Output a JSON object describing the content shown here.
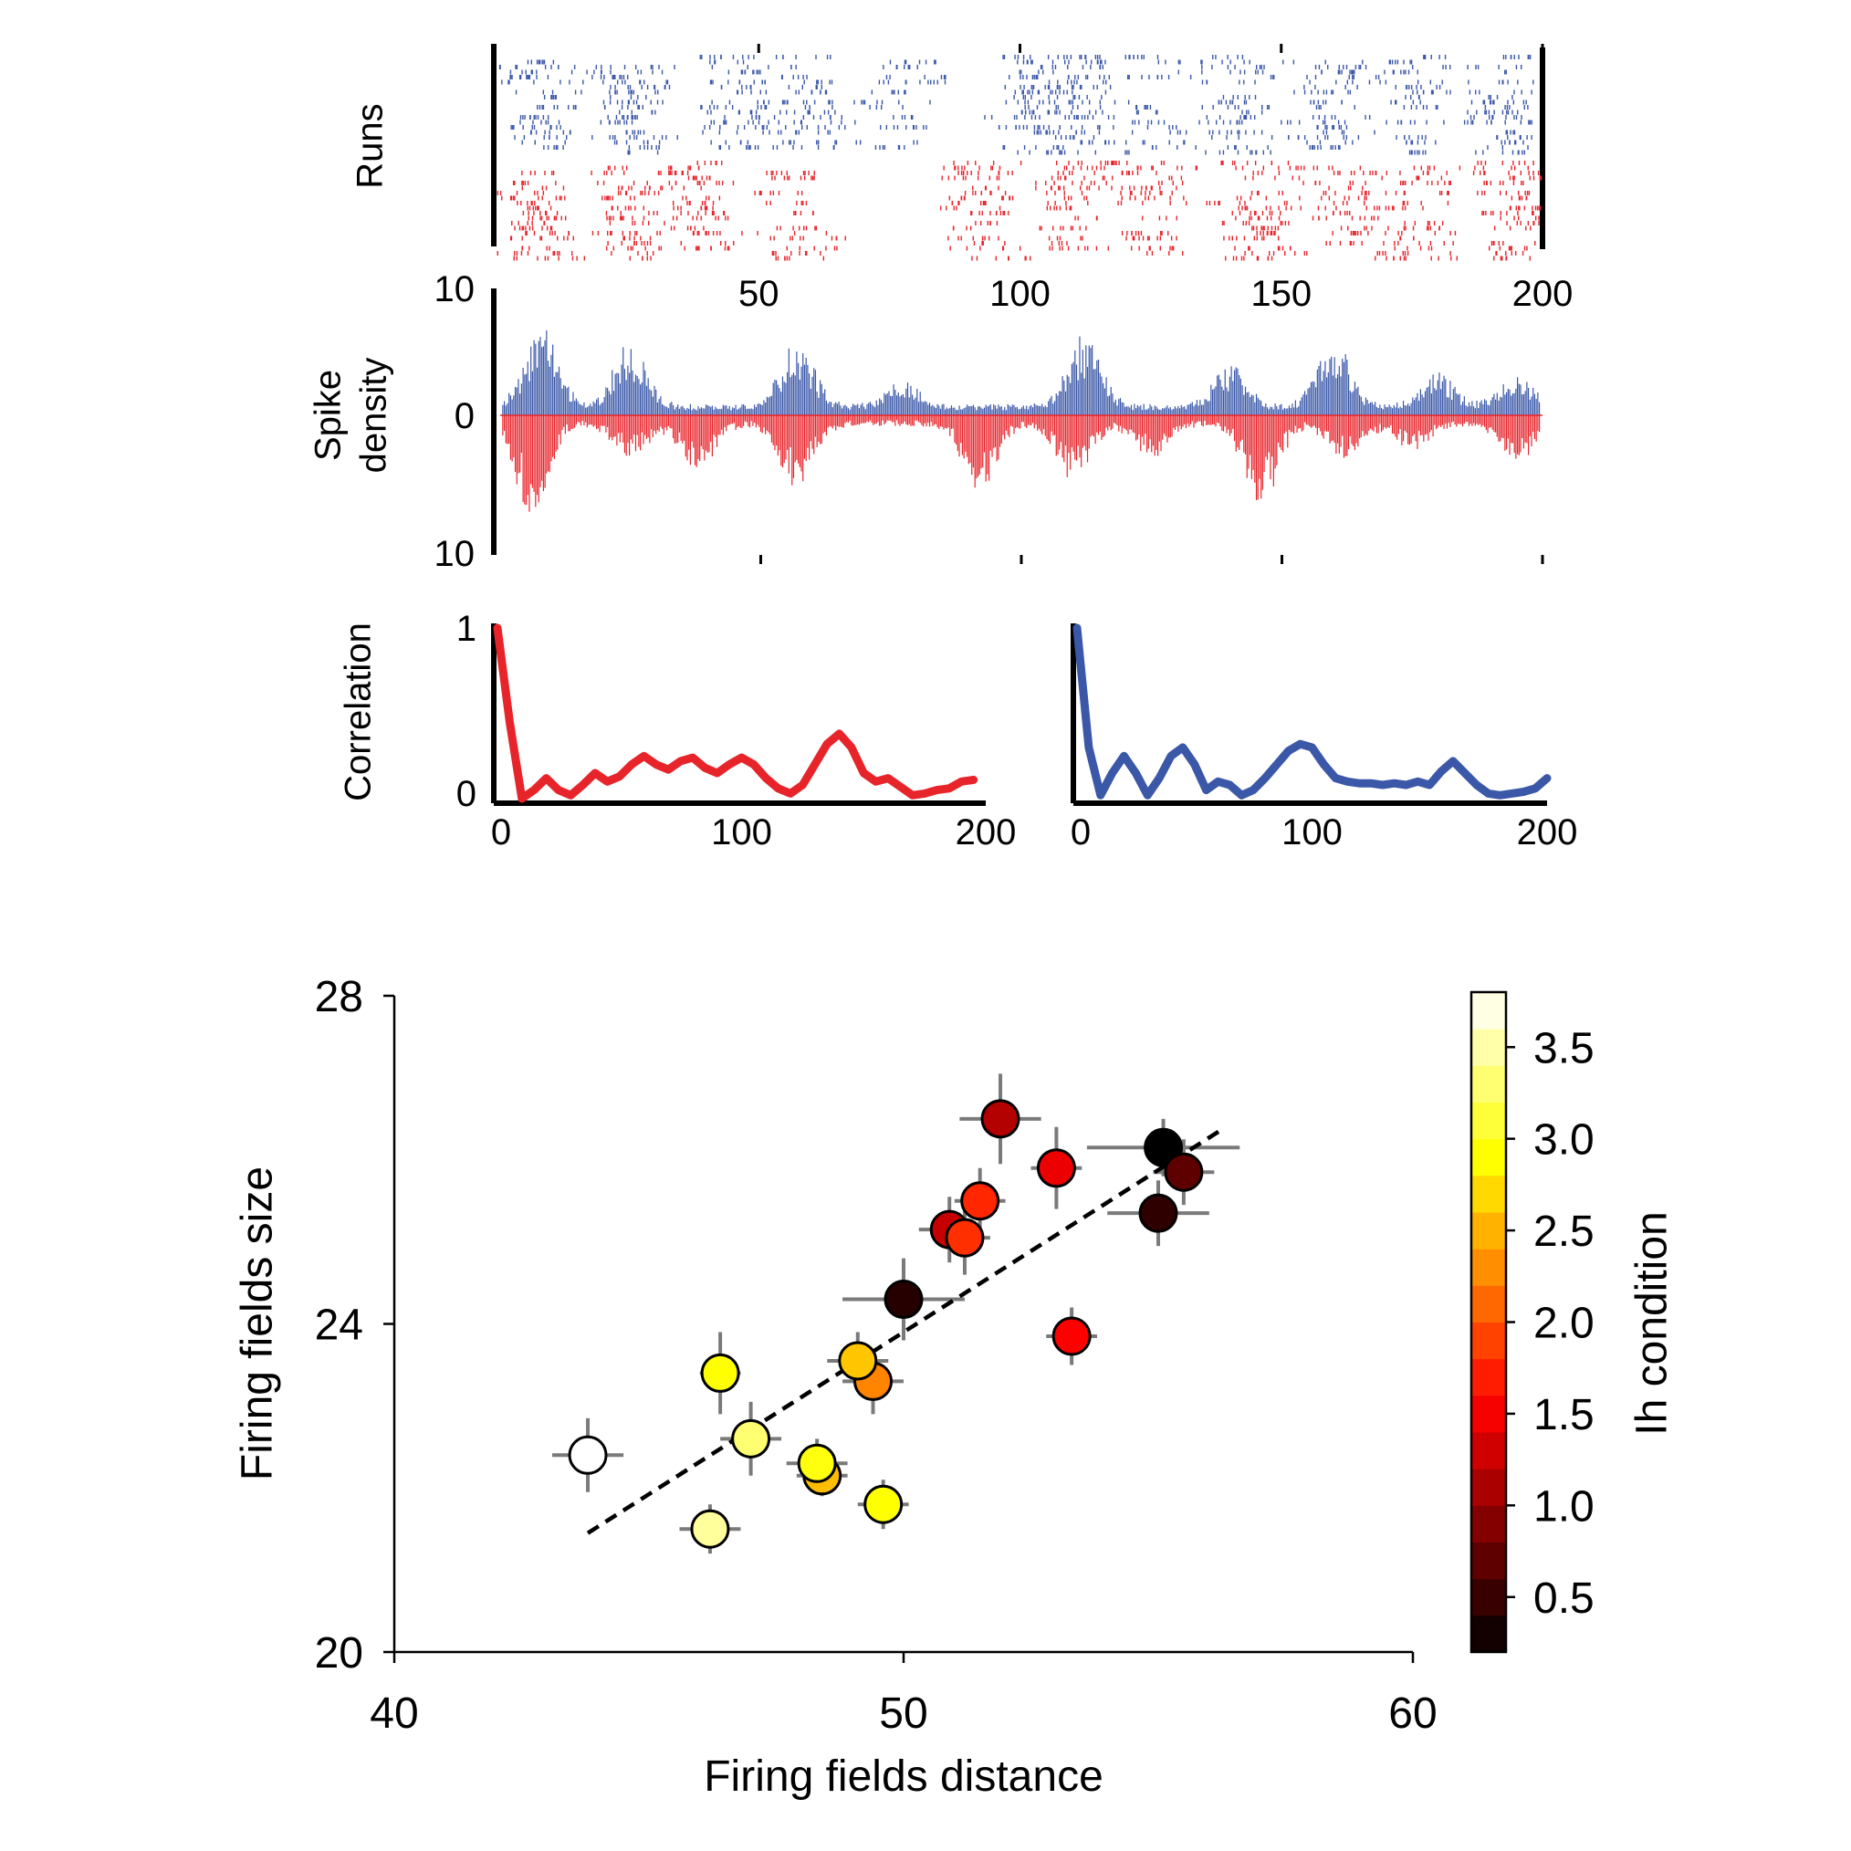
{
  "colors": {
    "run_a": "#3a57a8",
    "run_b": "#e8242b",
    "axis": "#000000",
    "errorbar": "#7a7a7a",
    "fit": "#000000"
  },
  "chart_data": [
    {
      "id": "raster",
      "type": "raster",
      "ylabel": "Runs",
      "xlim": [
        0,
        200
      ],
      "xticks": [
        50,
        100,
        150,
        200
      ],
      "runs_per_group": 20,
      "series": [
        {
          "color": "#3a57a8",
          "field_centers": [
            8,
            25,
            47,
            60,
            77,
            102,
            112,
            125,
            140,
            160,
            176,
            193
          ]
        },
        {
          "color": "#e8242b",
          "field_centers": [
            8,
            25,
            38,
            57,
            92,
            110,
            125,
            146,
            162,
            175,
            195
          ]
        }
      ]
    },
    {
      "id": "density",
      "type": "bar",
      "ylabel_lines": [
        "Spike",
        "density"
      ],
      "xlim": [
        0,
        200
      ],
      "ylim": [
        -10,
        10
      ],
      "yticks": [
        10,
        0,
        10
      ],
      "xticks": [
        50,
        100,
        150,
        200
      ],
      "series": [
        {
          "color": "#3a57a8",
          "direction": "up",
          "peaks": [
            [
              8,
              5
            ],
            [
              25,
              4
            ],
            [
              57,
              4
            ],
            [
              77,
              1.5
            ],
            [
              112,
              4.5
            ],
            [
              140,
              2.5
            ],
            [
              160,
              4
            ],
            [
              180,
              2
            ],
            [
              195,
              2
            ]
          ]
        },
        {
          "color": "#e8242b",
          "direction": "down",
          "peaks": [
            [
              6,
              5.5
            ],
            [
              25,
              2
            ],
            [
              38,
              3
            ],
            [
              57,
              4
            ],
            [
              92,
              4
            ],
            [
              110,
              3.5
            ],
            [
              125,
              2
            ],
            [
              146,
              5
            ],
            [
              162,
              2
            ],
            [
              175,
              1.5
            ],
            [
              195,
              2.5
            ]
          ]
        }
      ]
    },
    {
      "id": "corr_red",
      "type": "line",
      "ylabel": "Correlation",
      "xlim": [
        0,
        200
      ],
      "ylim": [
        0,
        1
      ],
      "xticks": [
        0,
        100,
        200
      ],
      "yticks": [
        0,
        1
      ],
      "color": "#e8242b",
      "x": [
        0,
        5,
        10,
        15,
        20,
        25,
        30,
        35,
        40,
        45,
        50,
        55,
        60,
        65,
        70,
        75,
        80,
        85,
        90,
        95,
        100,
        105,
        110,
        115,
        120,
        125,
        130,
        135,
        140,
        145,
        150,
        155,
        160,
        165,
        170,
        175,
        180,
        185,
        190,
        195
      ],
      "y": [
        1.0,
        0.45,
        0.0,
        0.05,
        0.12,
        0.05,
        0.02,
        0.08,
        0.15,
        0.1,
        0.13,
        0.2,
        0.25,
        0.2,
        0.17,
        0.22,
        0.24,
        0.18,
        0.15,
        0.2,
        0.24,
        0.2,
        0.12,
        0.06,
        0.03,
        0.08,
        0.2,
        0.32,
        0.38,
        0.3,
        0.15,
        0.1,
        0.12,
        0.07,
        0.02,
        0.03,
        0.05,
        0.06,
        0.1,
        0.11
      ]
    },
    {
      "id": "corr_blue",
      "type": "line",
      "xlim": [
        0,
        200
      ],
      "ylim": [
        0,
        1
      ],
      "xticks": [
        0,
        100,
        200
      ],
      "color": "#3a57a8",
      "x": [
        0,
        5,
        10,
        15,
        20,
        25,
        30,
        35,
        40,
        45,
        50,
        55,
        60,
        65,
        70,
        75,
        80,
        85,
        90,
        95,
        100,
        105,
        110,
        115,
        120,
        125,
        130,
        135,
        140,
        145,
        150,
        155,
        160,
        165,
        170,
        175,
        180,
        185,
        190,
        195,
        200
      ],
      "y": [
        1.0,
        0.3,
        0.02,
        0.15,
        0.25,
        0.15,
        0.02,
        0.12,
        0.25,
        0.3,
        0.2,
        0.05,
        0.1,
        0.08,
        0.02,
        0.05,
        0.12,
        0.2,
        0.28,
        0.32,
        0.3,
        0.2,
        0.12,
        0.1,
        0.09,
        0.09,
        0.08,
        0.09,
        0.08,
        0.1,
        0.08,
        0.16,
        0.22,
        0.15,
        0.08,
        0.03,
        0.02,
        0.03,
        0.04,
        0.06,
        0.12
      ]
    },
    {
      "id": "scatter",
      "type": "scatter",
      "xlabel": "Firing fields distance",
      "ylabel": "Firing fields size",
      "xlim": [
        40,
        60
      ],
      "ylim": [
        20,
        28
      ],
      "xticks": [
        40,
        50,
        60
      ],
      "yticks": [
        20,
        24,
        28
      ],
      "colorbar": {
        "label": "Ih condition",
        "range": [
          0.2,
          3.8
        ],
        "ticks": [
          0.5,
          1.0,
          1.5,
          2.0,
          2.5,
          3.0,
          3.5
        ],
        "tick_labels": [
          "0.5",
          "1.0",
          "1.5",
          "2.0",
          "2.5",
          "3.0",
          "3.5"
        ]
      },
      "fit_line": {
        "x": [
          43.8,
          56.2
        ],
        "y": [
          21.45,
          26.35
        ],
        "style": "dashed"
      },
      "points": [
        {
          "x": 43.8,
          "y": 22.4,
          "xerr": 0.7,
          "yerr": 0.45,
          "ih": 3.8
        },
        {
          "x": 46.2,
          "y": 21.5,
          "xerr": 0.6,
          "yerr": 0.3,
          "ih": 3.45
        },
        {
          "x": 46.4,
          "y": 23.4,
          "xerr": 0.4,
          "yerr": 0.5,
          "ih": 2.9
        },
        {
          "x": 47.0,
          "y": 22.6,
          "xerr": 0.6,
          "yerr": 0.45,
          "ih": 3.3
        },
        {
          "x": 48.4,
          "y": 22.15,
          "xerr": 0.5,
          "yerr": 0.25,
          "ih": 2.55
        },
        {
          "x": 48.3,
          "y": 22.3,
          "xerr": 0.6,
          "yerr": 0.3,
          "ih": 2.95
        },
        {
          "x": 49.4,
          "y": 23.3,
          "xerr": 0.6,
          "yerr": 0.4,
          "ih": 2.25
        },
        {
          "x": 49.1,
          "y": 23.55,
          "xerr": 0.6,
          "yerr": 0.35,
          "ih": 2.6
        },
        {
          "x": 49.6,
          "y": 21.8,
          "xerr": 0.5,
          "yerr": 0.3,
          "ih": 2.9
        },
        {
          "x": 50.0,
          "y": 24.3,
          "xerr": 1.2,
          "yerr": 0.5,
          "ih": 0.4
        },
        {
          "x": 50.9,
          "y": 25.15,
          "xerr": 0.6,
          "yerr": 0.4,
          "ih": 1.25
        },
        {
          "x": 51.2,
          "y": 25.05,
          "xerr": 0.5,
          "yerr": 0.45,
          "ih": 1.8
        },
        {
          "x": 51.5,
          "y": 25.5,
          "xerr": 0.5,
          "yerr": 0.4,
          "ih": 1.75
        },
        {
          "x": 51.9,
          "y": 26.5,
          "xerr": 0.8,
          "yerr": 0.55,
          "ih": 1.15
        },
        {
          "x": 53.0,
          "y": 25.9,
          "xerr": 0.5,
          "yerr": 0.5,
          "ih": 1.45
        },
        {
          "x": 53.3,
          "y": 23.85,
          "xerr": 0.5,
          "yerr": 0.35,
          "ih": 1.55
        },
        {
          "x": 55.0,
          "y": 25.35,
          "xerr": 1.0,
          "yerr": 0.4,
          "ih": 0.45
        },
        {
          "x": 55.1,
          "y": 26.15,
          "xerr": 1.5,
          "yerr": 0.35,
          "ih": 0.2
        },
        {
          "x": 55.5,
          "y": 25.85,
          "xerr": 0.6,
          "yerr": 0.4,
          "ih": 0.7
        }
      ]
    }
  ]
}
